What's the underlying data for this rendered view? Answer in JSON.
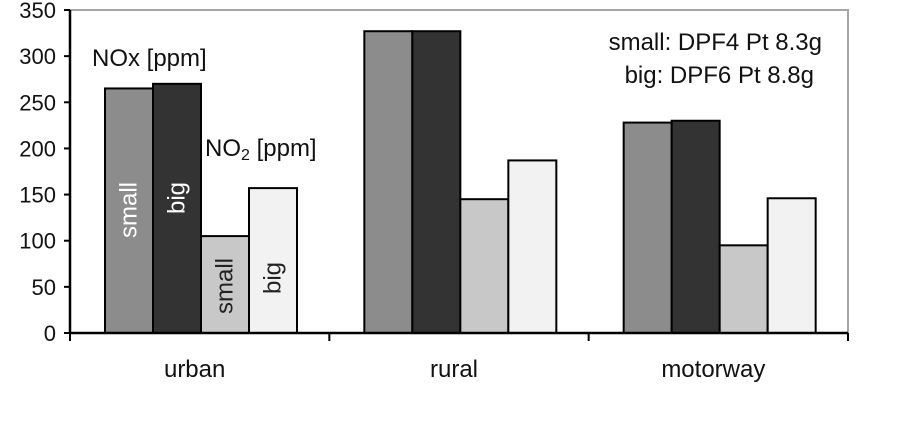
{
  "chart_data": {
    "type": "bar",
    "categories": [
      "urban",
      "rural",
      "motorway"
    ],
    "series": [
      {
        "values": [
          265,
          327,
          228
        ],
        "color": "#8c8c8c",
        "label": "small"
      },
      {
        "values": [
          270,
          327,
          230
        ],
        "color": "#333333",
        "label": "big"
      },
      {
        "values": [
          105,
          145,
          95
        ],
        "color": "#c8c8c8",
        "label": "small"
      },
      {
        "values": [
          157,
          187,
          146
        ],
        "color": "#f2f2f2",
        "label": "big"
      }
    ],
    "ylim": [
      0,
      350
    ],
    "yticks": [
      0,
      50,
      100,
      150,
      200,
      250,
      300,
      350
    ],
    "grid": false,
    "legend": "none",
    "annotations": {
      "nox": "NOx [ppm]",
      "no2_prefix": "NO",
      "no2_sub": "2",
      "no2_suffix": " [ppm]",
      "small_line": "small: DPF4 Pt 8.3g",
      "big_line": "big: DPF6 Pt 8.8g"
    },
    "label_colors": {
      "on_dark": "#ffffff",
      "on_light": "#222222"
    }
  }
}
